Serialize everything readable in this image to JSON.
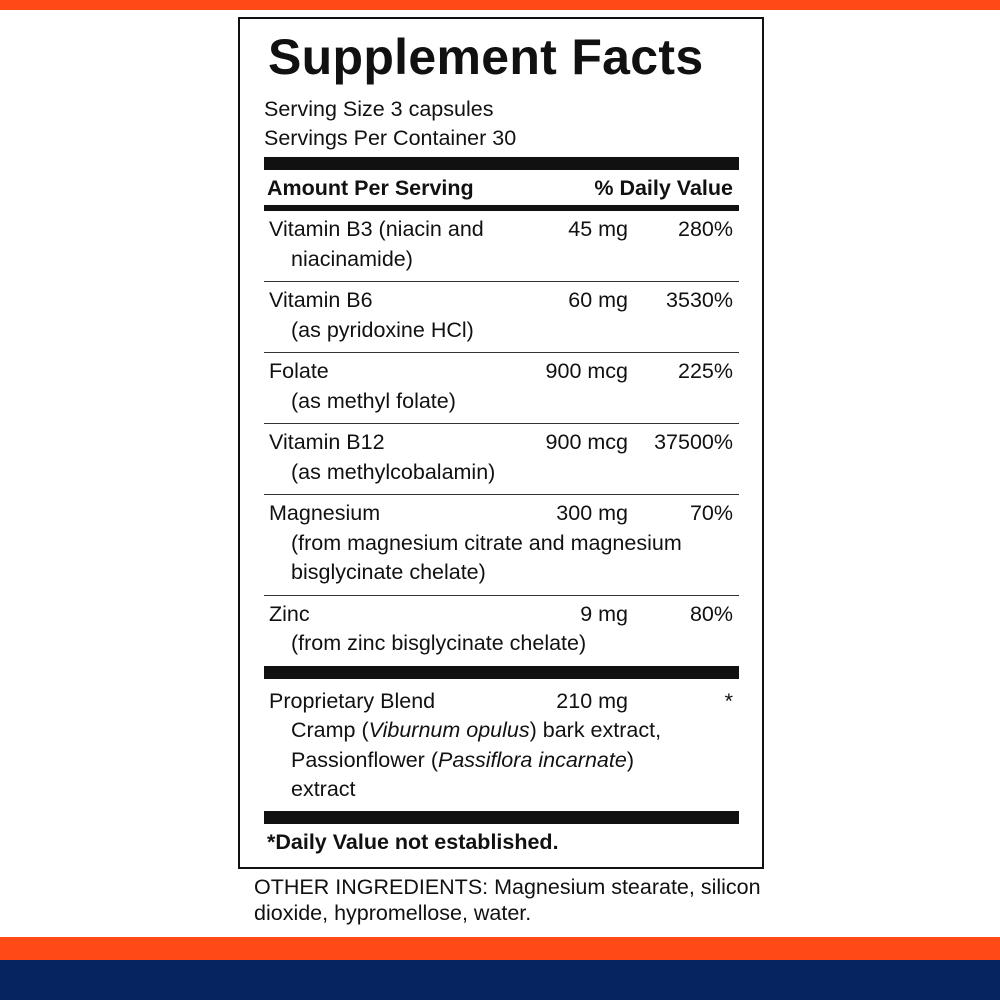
{
  "colors": {
    "accent_orange": "#fd4a16",
    "navy": "#062460"
  },
  "title": "Supplement Facts",
  "serving_size": "Serving Size 3 capsules",
  "servings_per_container": "Servings Per Container 30",
  "header": {
    "amount": "Amount Per Serving",
    "dv": "% Daily Value"
  },
  "rows": [
    {
      "name": "Vitamin B3 (niacin and",
      "sub": [
        "niacinamide)"
      ],
      "amount": "45 mg",
      "dv": "280%"
    },
    {
      "name": "Vitamin B6",
      "sub": [
        "(as pyridoxine HCl)"
      ],
      "amount": "60 mg",
      "dv": "3530%"
    },
    {
      "name": "Folate",
      "sub": [
        "(as methyl folate)"
      ],
      "amount": "900 mcg",
      "dv": "225%"
    },
    {
      "name": "Vitamin B12",
      "sub": [
        "(as methylcobalamin)"
      ],
      "amount": "900 mcg",
      "dv": "37500%"
    },
    {
      "name": "Magnesium",
      "sub": [
        "(from magnesium citrate and magnesium",
        "bisglycinate chelate)"
      ],
      "amount": "300 mg",
      "dv": "70%"
    },
    {
      "name": "Zinc",
      "sub": [
        "(from zinc bisglycinate chelate)"
      ],
      "amount": "9 mg",
      "dv": "80%"
    }
  ],
  "blend": {
    "name": "Proprietary Blend",
    "amount": "210 mg",
    "dv": "*",
    "lines": [
      [
        {
          "t": "Cramp ("
        },
        {
          "t": "Viburnum opulus",
          "i": true
        },
        {
          "t": ") bark extract,"
        }
      ],
      [
        {
          "t": "Passionflower ("
        },
        {
          "t": "Passiflora incarnate",
          "i": true
        },
        {
          "t": ")"
        }
      ],
      [
        {
          "t": "extract"
        }
      ]
    ]
  },
  "footnote": "*Daily Value not established.",
  "other_ingredients": "OTHER INGREDIENTS: Magnesium stearate, silicon dioxide, hypromellose, water."
}
